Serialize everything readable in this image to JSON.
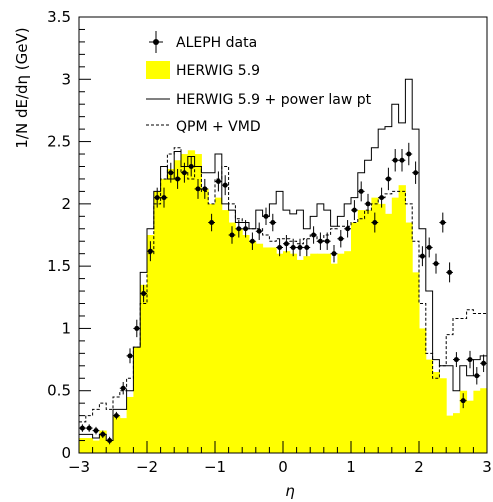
{
  "chart_data": {
    "type": "step",
    "xlabel": "η",
    "ylabel": "1/N dE/dη (GeV)",
    "xlim": [
      -3,
      3
    ],
    "ylim": [
      0,
      3.5
    ],
    "x_ticks": [
      -3,
      -2,
      -1,
      0,
      1,
      2,
      3
    ],
    "x_tick_labels": [
      "−3",
      "−2",
      "−1",
      "0",
      "1",
      "2",
      "3"
    ],
    "y_ticks": [
      0,
      0.5,
      1,
      1.5,
      2,
      2.5,
      3,
      3.5
    ],
    "y_tick_labels": [
      "0",
      "0.5",
      "1",
      "1.5",
      "2",
      "2.5",
      "3",
      "3.5"
    ],
    "legend": {
      "position": "top-left",
      "entries": [
        {
          "label": "ALEPH data",
          "style": "points"
        },
        {
          "label": "HERWIG 5.9",
          "style": "fill"
        },
        {
          "label": "HERWIG 5.9 + power law pt",
          "style": "solid"
        },
        {
          "label": "QPM + VMD",
          "style": "dashed"
        }
      ]
    },
    "bin_edges": [
      -3.0,
      -2.9,
      -2.8,
      -2.7,
      -2.6,
      -2.5,
      -2.4,
      -2.3,
      -2.2,
      -2.1,
      -2.0,
      -1.9,
      -1.8,
      -1.7,
      -1.6,
      -1.5,
      -1.4,
      -1.3,
      -1.2,
      -1.1,
      -1.0,
      -0.9,
      -0.8,
      -0.7,
      -0.6,
      -0.5,
      -0.4,
      -0.3,
      -0.2,
      -0.1,
      0.0,
      0.1,
      0.2,
      0.3,
      0.4,
      0.5,
      0.6,
      0.7,
      0.8,
      0.9,
      1.0,
      1.1,
      1.2,
      1.3,
      1.4,
      1.5,
      1.6,
      1.7,
      1.8,
      1.9,
      2.0,
      2.1,
      2.2,
      2.3,
      2.4,
      2.5,
      2.6,
      2.7,
      2.8,
      2.9,
      3.0
    ],
    "series": [
      {
        "name": "HERWIG 5.9",
        "color": "#ffff00",
        "values": [
          0.12,
          0.12,
          0.1,
          0.18,
          0.1,
          0.3,
          0.28,
          0.45,
          0.85,
          1.35,
          1.75,
          2.1,
          2.2,
          2.28,
          2.35,
          2.4,
          2.43,
          2.4,
          2.12,
          2.0,
          2.05,
          1.95,
          1.85,
          1.8,
          1.75,
          1.7,
          1.68,
          1.65,
          1.65,
          1.6,
          1.62,
          1.6,
          1.55,
          1.58,
          1.6,
          1.6,
          1.6,
          1.52,
          1.6,
          1.62,
          1.85,
          1.95,
          1.95,
          2.05,
          2.0,
          1.92,
          2.05,
          2.15,
          1.85,
          1.45,
          1.0,
          0.75,
          0.65,
          0.6,
          0.3,
          0.32,
          0.5,
          0.42,
          0.5,
          0.52
        ]
      },
      {
        "name": "HERWIG 5.9 + power law pt",
        "color": "#000000",
        "values": [
          0.15,
          0.15,
          0.12,
          0.15,
          0.1,
          0.35,
          0.35,
          0.5,
          0.85,
          1.45,
          1.8,
          2.1,
          2.3,
          2.2,
          2.42,
          2.3,
          2.38,
          2.3,
          2.25,
          2.25,
          2.4,
          2.0,
          1.95,
          1.85,
          1.85,
          1.8,
          1.95,
          1.9,
          2.0,
          2.1,
          1.95,
          1.92,
          1.95,
          1.8,
          1.9,
          2.0,
          1.95,
          1.82,
          1.9,
          2.0,
          2.05,
          2.25,
          2.35,
          2.45,
          2.6,
          2.62,
          2.8,
          2.65,
          3.0,
          2.6,
          1.8,
          1.3,
          0.75,
          0.7,
          0.7,
          0.5,
          0.7,
          0.62,
          0.75,
          0.78
        ]
      },
      {
        "name": "QPM + VMD",
        "color": "#000000",
        "values": [
          0.25,
          0.3,
          0.35,
          0.4,
          0.35,
          0.45,
          0.5,
          0.6,
          0.85,
          1.2,
          1.6,
          2.0,
          2.2,
          2.4,
          2.45,
          2.25,
          2.2,
          2.3,
          2.1,
          2.0,
          2.2,
          2.3,
          2.0,
          1.88,
          1.85,
          1.8,
          1.8,
          1.75,
          1.7,
          1.72,
          1.72,
          1.7,
          1.68,
          1.72,
          1.75,
          1.7,
          1.75,
          1.8,
          1.82,
          1.82,
          1.85,
          1.88,
          1.95,
          2.0,
          2.05,
          2.08,
          2.1,
          2.1,
          2.0,
          1.7,
          1.2,
          0.8,
          0.6,
          0.7,
          0.95,
          1.08,
          1.08,
          1.15,
          1.12,
          1.12
        ]
      },
      {
        "name": "ALEPH data",
        "color": "#000000",
        "x": [
          -2.95,
          -2.85,
          -2.75,
          -2.65,
          -2.55,
          -2.45,
          -2.35,
          -2.25,
          -2.15,
          -2.05,
          -1.95,
          -1.85,
          -1.75,
          -1.65,
          -1.55,
          -1.45,
          -1.35,
          -1.25,
          -1.15,
          -1.05,
          -0.95,
          -0.85,
          -0.75,
          -0.65,
          -0.55,
          -0.45,
          -0.35,
          -0.25,
          -0.15,
          -0.05,
          0.05,
          0.15,
          0.25,
          0.35,
          0.45,
          0.55,
          0.65,
          0.75,
          0.85,
          0.95,
          1.05,
          1.15,
          1.25,
          1.35,
          1.45,
          1.55,
          1.65,
          1.75,
          1.85,
          1.95,
          2.05,
          2.15,
          2.25,
          2.35,
          2.45,
          2.55,
          2.65,
          2.75,
          2.85,
          2.95
        ],
        "y": [
          0.2,
          0.2,
          0.18,
          0.15,
          0.1,
          0.3,
          0.52,
          0.78,
          1.0,
          1.28,
          1.62,
          2.05,
          2.05,
          2.25,
          2.2,
          2.25,
          2.3,
          2.12,
          2.12,
          1.85,
          2.18,
          2.15,
          1.75,
          1.8,
          1.8,
          1.7,
          1.78,
          1.9,
          1.85,
          1.65,
          1.68,
          1.65,
          1.65,
          1.65,
          1.75,
          1.7,
          1.7,
          1.6,
          1.72,
          1.8,
          1.95,
          2.1,
          2.0,
          1.85,
          2.05,
          2.2,
          2.35,
          2.35,
          2.4,
          2.25,
          1.58,
          1.65,
          1.52,
          1.85,
          1.45,
          0.75,
          0.42,
          0.75,
          0.62,
          0.72
        ],
        "yerr": [
          0.03,
          0.03,
          0.03,
          0.03,
          0.03,
          0.03,
          0.05,
          0.06,
          0.07,
          0.07,
          0.08,
          0.08,
          0.08,
          0.08,
          0.08,
          0.08,
          0.08,
          0.08,
          0.08,
          0.07,
          0.08,
          0.08,
          0.07,
          0.07,
          0.07,
          0.07,
          0.07,
          0.07,
          0.07,
          0.07,
          0.07,
          0.07,
          0.07,
          0.07,
          0.07,
          0.07,
          0.07,
          0.07,
          0.07,
          0.07,
          0.08,
          0.08,
          0.08,
          0.08,
          0.08,
          0.09,
          0.09,
          0.09,
          0.09,
          0.09,
          0.08,
          0.08,
          0.08,
          0.08,
          0.08,
          0.06,
          0.06,
          0.07,
          0.07,
          0.07
        ]
      }
    ]
  }
}
